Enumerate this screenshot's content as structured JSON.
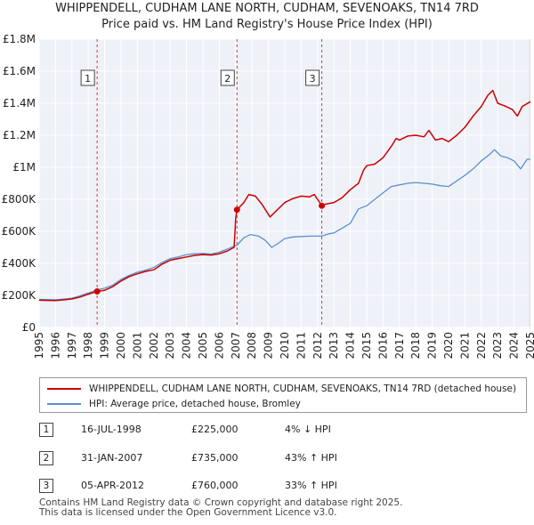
{
  "chart_data": {
    "type": "line",
    "title": "WHIPPENDELL, CUDHAM LANE NORTH, CUDHAM, SEVENOAKS, TN14 7RD",
    "subtitle": "Price paid vs. HM Land Registry's House Price Index (HPI)",
    "xlabel": "",
    "ylabel": "",
    "xlim": [
      1995,
      2025
    ],
    "ylim": [
      0,
      1800000
    ],
    "yticks": [
      {
        "value": 0,
        "label": "£0"
      },
      {
        "value": 200000,
        "label": "£200K"
      },
      {
        "value": 400000,
        "label": "£400K"
      },
      {
        "value": 600000,
        "label": "£600K"
      },
      {
        "value": 800000,
        "label": "£800K"
      },
      {
        "value": 1000000,
        "label": "£1M"
      },
      {
        "value": 1200000,
        "label": "£1.2M"
      },
      {
        "value": 1400000,
        "label": "£1.4M"
      },
      {
        "value": 1600000,
        "label": "£1.6M"
      },
      {
        "value": 1800000,
        "label": "£1.8M"
      }
    ],
    "xticks": [
      "1995",
      "1996",
      "1997",
      "1998",
      "1999",
      "2000",
      "2001",
      "2002",
      "2003",
      "2004",
      "2005",
      "2006",
      "2007",
      "2008",
      "2009",
      "2010",
      "2011",
      "2012",
      "2013",
      "2014",
      "2015",
      "2016",
      "2017",
      "2018",
      "2019",
      "2020",
      "2021",
      "2022",
      "2023",
      "2024",
      "2025"
    ],
    "grid": true,
    "series": [
      {
        "name": "WHIPPENDELL, CUDHAM LANE NORTH, CUDHAM, SEVENOAKS, TN14 7RD (detached house)",
        "color": "#cc0000",
        "points": [
          [
            1995.0,
            170000
          ],
          [
            1995.5,
            169000
          ],
          [
            1996.0,
            168000
          ],
          [
            1996.5,
            172000
          ],
          [
            1997.0,
            178000
          ],
          [
            1997.5,
            190000
          ],
          [
            1998.0,
            208000
          ],
          [
            1998.54,
            225000
          ],
          [
            1999.0,
            232000
          ],
          [
            1999.5,
            255000
          ],
          [
            2000.0,
            290000
          ],
          [
            2000.5,
            318000
          ],
          [
            2001.0,
            335000
          ],
          [
            2001.5,
            350000
          ],
          [
            2002.0,
            360000
          ],
          [
            2002.5,
            395000
          ],
          [
            2003.0,
            420000
          ],
          [
            2003.5,
            430000
          ],
          [
            2004.0,
            440000
          ],
          [
            2004.5,
            450000
          ],
          [
            2005.0,
            455000
          ],
          [
            2005.5,
            452000
          ],
          [
            2006.0,
            460000
          ],
          [
            2006.5,
            478000
          ],
          [
            2006.9,
            500000
          ],
          [
            2006.95,
            580000
          ],
          [
            2007.0,
            680000
          ],
          [
            2007.08,
            735000
          ],
          [
            2007.5,
            780000
          ],
          [
            2007.8,
            830000
          ],
          [
            2008.2,
            820000
          ],
          [
            2008.6,
            770000
          ],
          [
            2009.1,
            690000
          ],
          [
            2009.5,
            730000
          ],
          [
            2010.0,
            780000
          ],
          [
            2010.5,
            805000
          ],
          [
            2011.0,
            820000
          ],
          [
            2011.5,
            815000
          ],
          [
            2011.8,
            830000
          ],
          [
            2012.0,
            800000
          ],
          [
            2012.26,
            760000
          ],
          [
            2012.5,
            770000
          ],
          [
            2013.0,
            780000
          ],
          [
            2013.5,
            810000
          ],
          [
            2014.0,
            860000
          ],
          [
            2014.5,
            900000
          ],
          [
            2014.8,
            980000
          ],
          [
            2015.0,
            1010000
          ],
          [
            2015.5,
            1020000
          ],
          [
            2016.0,
            1060000
          ],
          [
            2016.5,
            1130000
          ],
          [
            2016.8,
            1180000
          ],
          [
            2017.0,
            1170000
          ],
          [
            2017.5,
            1195000
          ],
          [
            2018.0,
            1200000
          ],
          [
            2018.5,
            1190000
          ],
          [
            2018.8,
            1230000
          ],
          [
            2019.2,
            1170000
          ],
          [
            2019.6,
            1180000
          ],
          [
            2020.0,
            1160000
          ],
          [
            2020.5,
            1200000
          ],
          [
            2021.0,
            1250000
          ],
          [
            2021.5,
            1320000
          ],
          [
            2022.0,
            1380000
          ],
          [
            2022.4,
            1450000
          ],
          [
            2022.7,
            1480000
          ],
          [
            2023.0,
            1400000
          ],
          [
            2023.5,
            1380000
          ],
          [
            2023.9,
            1360000
          ],
          [
            2024.2,
            1320000
          ],
          [
            2024.5,
            1380000
          ],
          [
            2025.0,
            1410000
          ]
        ]
      },
      {
        "name": "HPI: Average price, detached house, Bromley",
        "color": "#5b8fd0",
        "points": [
          [
            1995.0,
            175000
          ],
          [
            1995.5,
            174000
          ],
          [
            1996.0,
            173000
          ],
          [
            1996.5,
            177000
          ],
          [
            1997.0,
            183000
          ],
          [
            1997.5,
            198000
          ],
          [
            1998.0,
            215000
          ],
          [
            1998.54,
            235000
          ],
          [
            1999.0,
            245000
          ],
          [
            1999.5,
            265000
          ],
          [
            2000.0,
            300000
          ],
          [
            2000.5,
            325000
          ],
          [
            2001.0,
            345000
          ],
          [
            2001.5,
            358000
          ],
          [
            2002.0,
            375000
          ],
          [
            2002.5,
            405000
          ],
          [
            2003.0,
            430000
          ],
          [
            2003.5,
            440000
          ],
          [
            2004.0,
            455000
          ],
          [
            2004.5,
            460000
          ],
          [
            2005.0,
            462000
          ],
          [
            2005.5,
            458000
          ],
          [
            2006.0,
            470000
          ],
          [
            2006.5,
            490000
          ],
          [
            2007.08,
            514000
          ],
          [
            2007.5,
            560000
          ],
          [
            2007.9,
            580000
          ],
          [
            2008.4,
            570000
          ],
          [
            2008.8,
            545000
          ],
          [
            2009.2,
            500000
          ],
          [
            2009.6,
            525000
          ],
          [
            2010.0,
            555000
          ],
          [
            2010.5,
            565000
          ],
          [
            2011.0,
            568000
          ],
          [
            2011.5,
            570000
          ],
          [
            2012.0,
            570000
          ],
          [
            2012.26,
            571000
          ],
          [
            2012.7,
            585000
          ],
          [
            2013.0,
            590000
          ],
          [
            2013.5,
            620000
          ],
          [
            2014.0,
            650000
          ],
          [
            2014.5,
            740000
          ],
          [
            2015.0,
            760000
          ],
          [
            2015.5,
            800000
          ],
          [
            2016.0,
            840000
          ],
          [
            2016.5,
            880000
          ],
          [
            2017.0,
            890000
          ],
          [
            2017.5,
            900000
          ],
          [
            2018.0,
            905000
          ],
          [
            2018.5,
            900000
          ],
          [
            2019.0,
            895000
          ],
          [
            2019.5,
            885000
          ],
          [
            2020.0,
            880000
          ],
          [
            2020.5,
            915000
          ],
          [
            2021.0,
            950000
          ],
          [
            2021.5,
            990000
          ],
          [
            2022.0,
            1040000
          ],
          [
            2022.5,
            1080000
          ],
          [
            2022.8,
            1110000
          ],
          [
            2023.2,
            1070000
          ],
          [
            2023.6,
            1060000
          ],
          [
            2024.0,
            1040000
          ],
          [
            2024.4,
            990000
          ],
          [
            2024.8,
            1050000
          ],
          [
            2025.0,
            1050000
          ]
        ]
      }
    ],
    "sales": [
      {
        "id": "1",
        "year": 1998.54,
        "price": 225000,
        "date": "16-JUL-1998",
        "price_label": "£225,000",
        "hpi": "4% ↓ HPI"
      },
      {
        "id": "2",
        "year": 2007.08,
        "price": 735000,
        "date": "31-JAN-2007",
        "price_label": "£735,000",
        "hpi": "43% ↑ HPI"
      },
      {
        "id": "3",
        "year": 2012.26,
        "price": 760000,
        "date": "05-APR-2012",
        "price_label": "£760,000",
        "hpi": "33% ↑ HPI"
      }
    ]
  },
  "legend": {
    "property_label": "WHIPPENDELL, CUDHAM LANE NORTH, CUDHAM, SEVENOAKS, TN14 7RD (detached house)",
    "hpi_label": "HPI: Average price, detached house, Bromley",
    "property_color": "#cc0000",
    "hpi_color": "#5b8fd0"
  },
  "footer": {
    "line1": "Contains HM Land Registry data © Crown copyright and database right 2025.",
    "line2": "This data is licensed under the Open Government Licence v3.0."
  }
}
